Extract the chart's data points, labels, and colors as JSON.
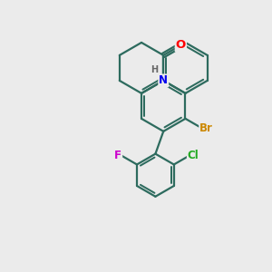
{
  "background_color": "#ebebeb",
  "bond_color": "#2d6b5e",
  "atom_colors": {
    "O": "#ff0000",
    "N": "#0000ee",
    "H": "#666666",
    "Br": "#cc8800",
    "Cl": "#22aa22",
    "F": "#cc00cc"
  },
  "figsize": [
    3.0,
    3.0
  ],
  "dpi": 100,
  "lw": 1.6
}
